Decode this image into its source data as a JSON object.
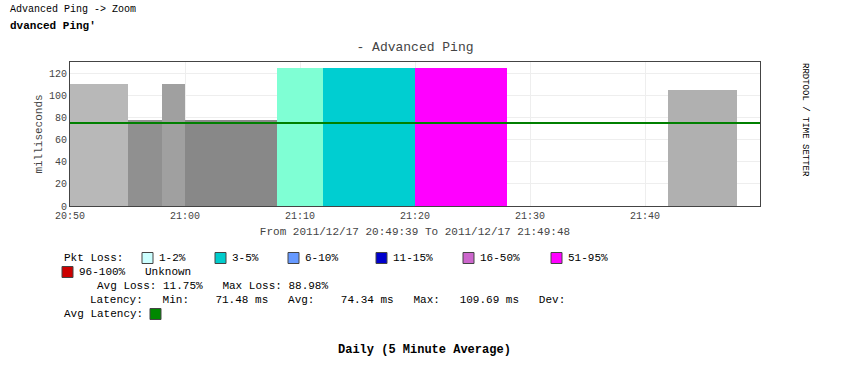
{
  "chart_data": {
    "type": "bar",
    "title": "- Advanced Ping",
    "xlabel": "From 2011/12/17 20:49:39 To 2011/12/17 21:49:48",
    "ylabel": "milliseconds",
    "xlim": [
      0,
      60
    ],
    "xticks": [
      {
        "value": 0,
        "label": "20:50"
      },
      {
        "value": 10,
        "label": "21:00"
      },
      {
        "value": 20,
        "label": "21:10"
      },
      {
        "value": 30,
        "label": "21:20"
      },
      {
        "value": 40,
        "label": "21:30"
      },
      {
        "value": 50,
        "label": "21:40"
      }
    ],
    "ylim": [
      0,
      130
    ],
    "yticks": [
      0,
      20,
      40,
      60,
      80,
      100,
      120
    ],
    "grid": true,
    "series": [
      {
        "type": "bar",
        "x": [
          0,
          5,
          8,
          10,
          18,
          22,
          30,
          52
        ],
        "widths": [
          5,
          3,
          2,
          8,
          4,
          8,
          8,
          6
        ],
        "values": [
          110,
          78,
          110,
          78,
          125,
          125,
          125,
          105
        ],
        "colors": [
          "#b8b8b8",
          "#909090",
          "#a0a0a0",
          "#888888",
          "#7fffd4",
          "#00ced1",
          "#ff00ff",
          "#b0b0b0"
        ]
      },
      {
        "type": "line",
        "x": [
          0,
          60
        ],
        "values": [
          75,
          75
        ],
        "color": "#008000"
      }
    ],
    "annotations": {
      "header": "Advanced Ping -> Zoom",
      "subheader": "dvanced Ping'",
      "sidebar": "RRDTOOL / TIME SETTER",
      "footer": "Daily (5 Minute Average)",
      "key_title": "Pkt Loss:",
      "key": [
        {
          "label": "1-2%",
          "color": "#ccffff"
        },
        {
          "label": "3-5%",
          "color": "#00cccc"
        },
        {
          "label": "6-10%",
          "color": "#6699ff"
        },
        {
          "label": "11-15%",
          "color": "#0000cc"
        },
        {
          "label": "16-50%",
          "color": "#cc66cc"
        },
        {
          "label": "51-95%",
          "color": "#ff00ff"
        }
      ],
      "key_extra": {
        "label": "96-100%   Unknown",
        "color": "#cc0000"
      },
      "stats": [
        "Avg Loss: 11.75%   Max Loss: 88.98%",
        "Latency:   Min:    71.48 ms   Avg:    74.34 ms   Max:   109.69 ms   Dev:"
      ],
      "avg_latency": {
        "label": "Avg Latency:",
        "color": "#008800"
      }
    }
  }
}
